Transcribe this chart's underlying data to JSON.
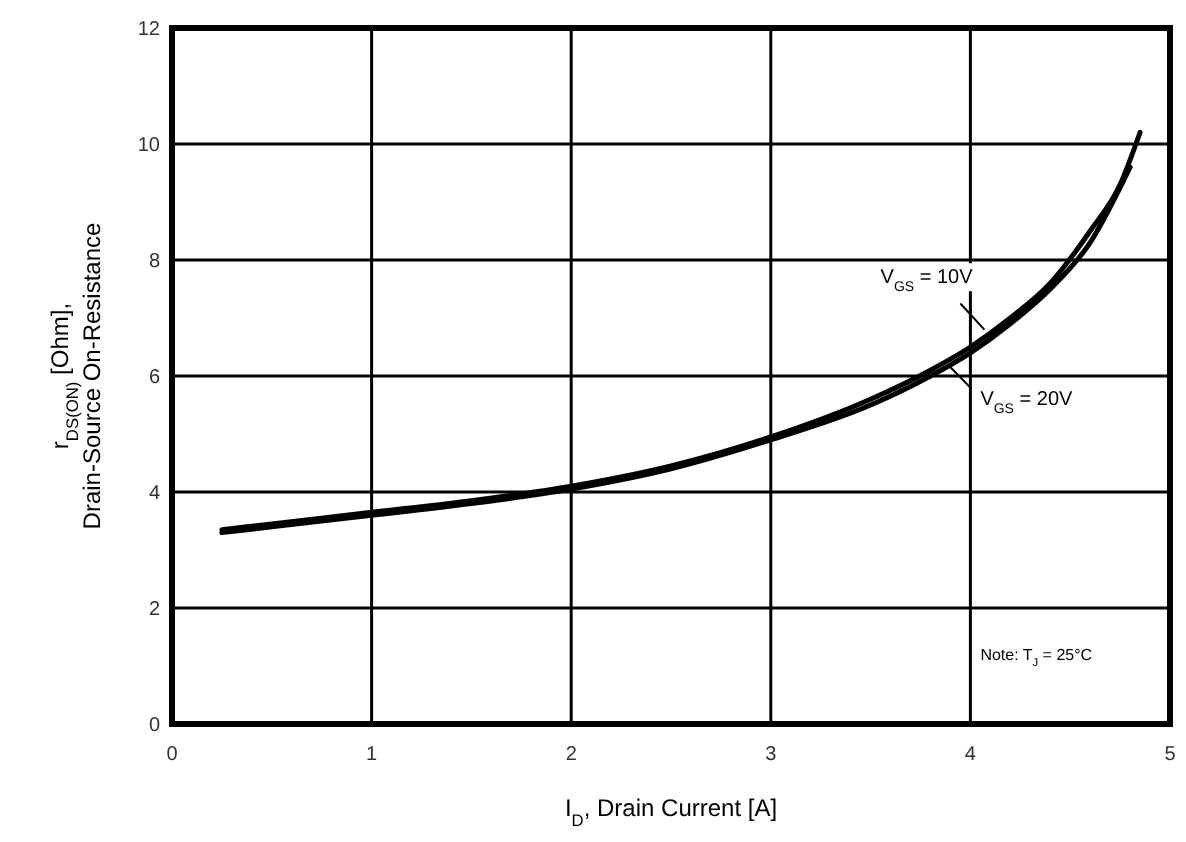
{
  "chart_data": {
    "type": "line",
    "xlabel": "I$_{D}$, Drain Current [A]",
    "ylabel": "r$_{DS(ON)}$ [Ohm],\nDrain-Source On-Resistance",
    "x": [
      0.25,
      0.5,
      1,
      1.5,
      2,
      2.5,
      3,
      3.5,
      3.8,
      4,
      4.2,
      4.4,
      4.6,
      4.75,
      4.85
    ],
    "series": [
      {
        "name": "V$_{GS}$ = 10V",
        "color": "#000000",
        "values": [
          3.35,
          3.45,
          3.65,
          3.85,
          4.1,
          4.45,
          4.95,
          5.6,
          6.1,
          6.5,
          7.0,
          7.6,
          8.5,
          9.3,
          10.2
        ]
      },
      {
        "name": "V$_{GS}$ = 20V",
        "color": "#000000",
        "x": [
          0.25,
          0.5,
          1,
          1.5,
          2,
          2.5,
          3,
          3.5,
          3.8,
          4,
          4.2,
          4.4,
          4.6,
          4.8
        ],
        "values": [
          3.3,
          3.4,
          3.6,
          3.8,
          4.05,
          4.4,
          4.9,
          5.5,
          6.0,
          6.4,
          6.9,
          7.5,
          8.3,
          9.6
        ]
      }
    ],
    "xlim": [
      0,
      5
    ],
    "ylim": [
      0,
      12
    ],
    "xticks": [
      0,
      1,
      2,
      3,
      4,
      5
    ],
    "yticks": [
      0,
      2,
      4,
      6,
      8,
      10,
      12
    ],
    "grid": true,
    "marker": "none",
    "line_style": "solid",
    "annotations": [
      "Note: T$_{J}$ = 25°C"
    ]
  }
}
